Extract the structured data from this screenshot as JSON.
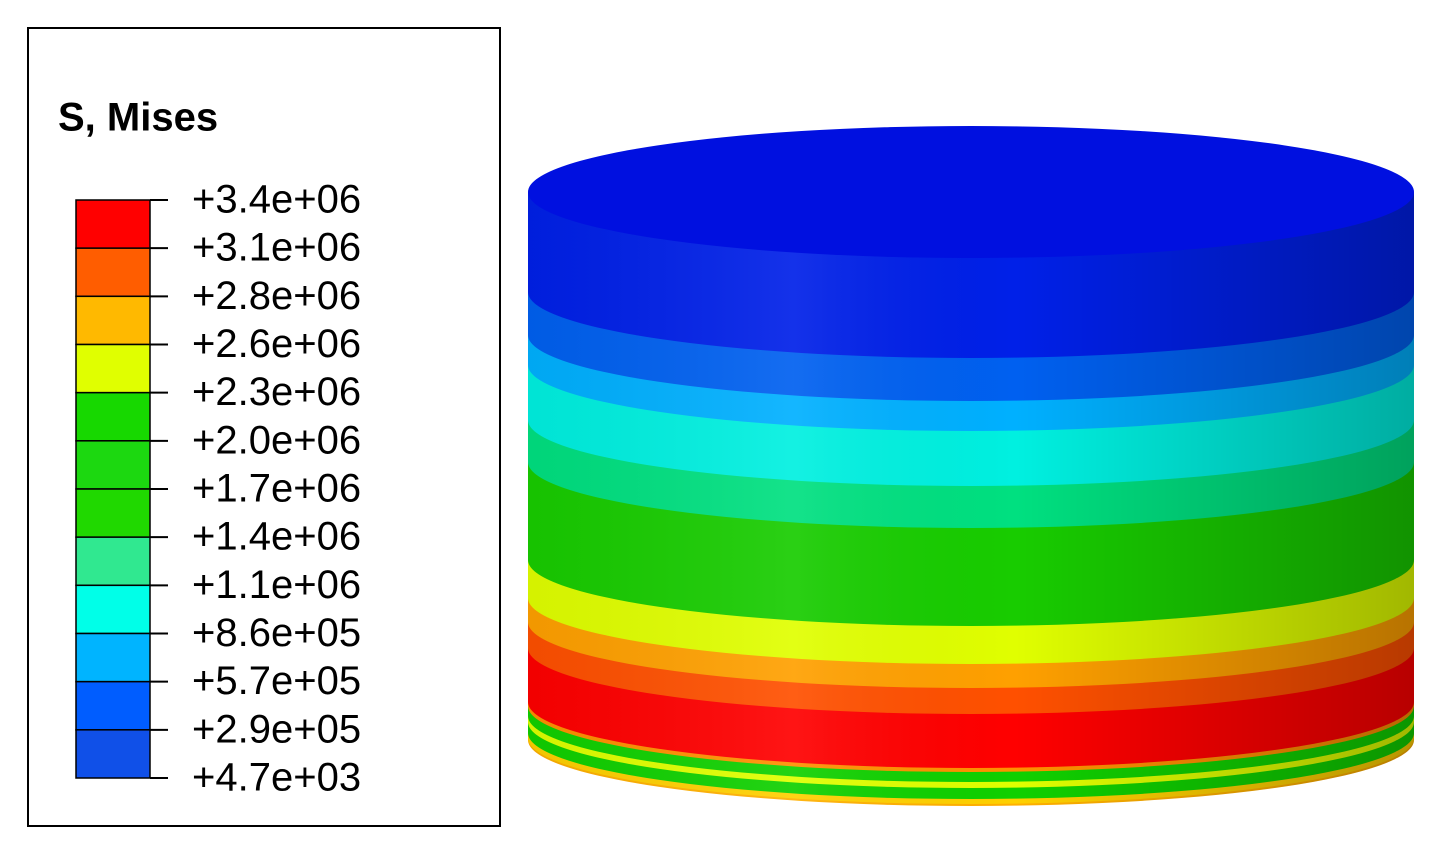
{
  "legend": {
    "title": "S, Mises",
    "labels": [
      "+3.4e+06",
      "+3.1e+06",
      "+2.8e+06",
      "+2.6e+06",
      "+2.3e+06",
      "+2.0e+06",
      "+1.7e+06",
      "+1.4e+06",
      "+1.1e+06",
      "+8.6e+05",
      "+5.7e+05",
      "+2.9e+05",
      "+4.7e+03"
    ],
    "colors": [
      "#ff0000",
      "#ff5d00",
      "#ffb900",
      "#e0ff00",
      "#17d800",
      "#1cd810",
      "#20d800",
      "#30e890",
      "#00ffe8",
      "#00b4ff",
      "#005dff",
      "#1050e8",
      "#0000ff"
    ]
  }
}
